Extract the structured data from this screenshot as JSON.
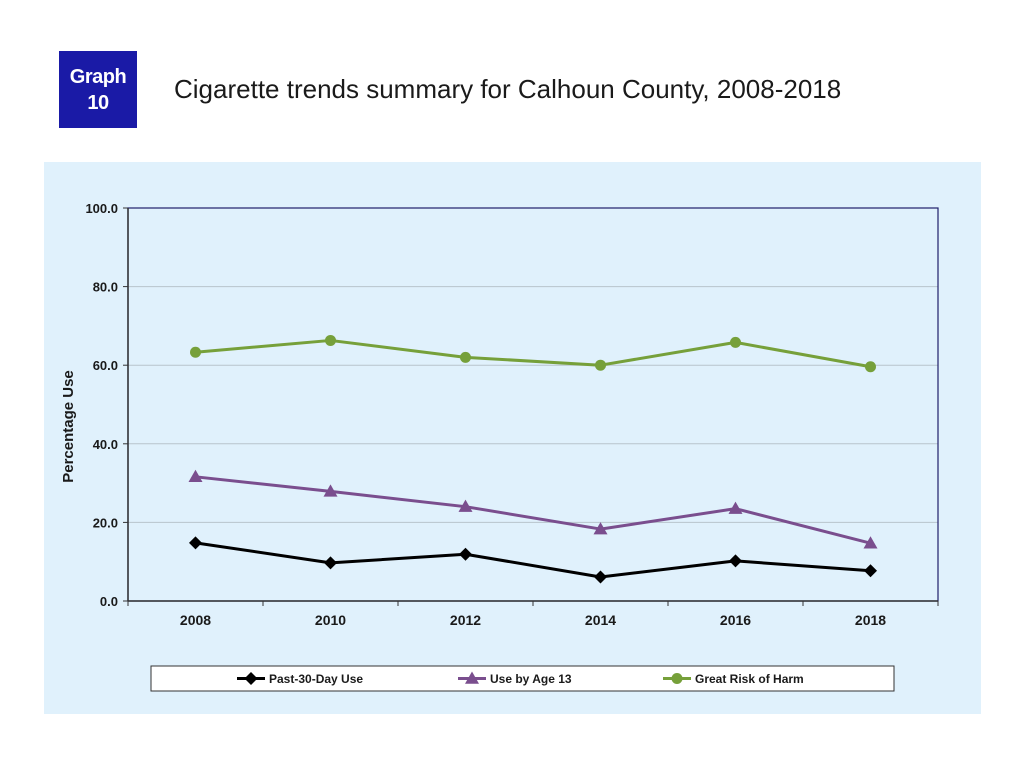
{
  "badge": {
    "line1": "Graph",
    "line2": "10"
  },
  "header": {
    "title": "Cigarette trends summary for Calhoun County, 2008-2018"
  },
  "chart_data": {
    "type": "line",
    "x": [
      "2008",
      "2010",
      "2012",
      "2014",
      "2016",
      "2018"
    ],
    "ylabel": "Percentage Use",
    "xlabel": "",
    "ylim": [
      0,
      100
    ],
    "yticks": [
      "0.0",
      "20.0",
      "40.0",
      "60.0",
      "80.0",
      "100.0"
    ],
    "grid": true,
    "legend_position": "bottom",
    "series": [
      {
        "name": "Past-30-Day Use",
        "color": "#000000",
        "marker": "diamond",
        "values": [
          14.8,
          9.7,
          11.9,
          6.1,
          10.2,
          7.7
        ]
      },
      {
        "name": "Use by Age 13",
        "color": "#7a4e8e",
        "marker": "triangle",
        "values": [
          31.6,
          27.9,
          24.0,
          18.3,
          23.5,
          14.7
        ]
      },
      {
        "name": "Great Risk of Harm",
        "color": "#76a03a",
        "marker": "circle",
        "values": [
          63.3,
          66.3,
          62.0,
          60.0,
          65.8,
          59.6
        ]
      }
    ]
  }
}
